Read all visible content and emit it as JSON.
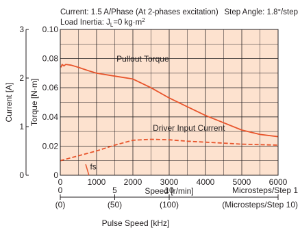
{
  "header": {
    "line1_left": "Current: 1.5 A/Phase (At 2-phases excitation)",
    "line1_right": "Step Angle: 1.8°/step",
    "line2": "Load Inertia: J",
    "line2_sub": "L",
    "line2_tail": "=0 kg·m",
    "line2_sup": "2"
  },
  "colors": {
    "plot_bg": "#fde2cf",
    "curve": "#e8542b",
    "grid": "#231f20"
  },
  "chart_data": {
    "type": "line",
    "xlabel": "Speed [r/min]",
    "ylabel": "Torque [N·m]",
    "y2label": "Current [A]",
    "xlim": [
      0,
      6000
    ],
    "ylim": [
      0,
      0.1
    ],
    "y2lim": [
      0,
      3
    ],
    "x_ticks": [
      "0",
      "1000",
      "2000",
      "3000",
      "4000",
      "5000",
      "6000"
    ],
    "y_ticks": [
      "0",
      "0.02",
      "0.04",
      "0.06",
      "0.08",
      "0.10"
    ],
    "y2_ticks": [
      "0",
      "1",
      "2",
      "3"
    ],
    "grid": true,
    "series": [
      {
        "name": "Pullout Torque",
        "style": "solid",
        "x": [
          20,
          50,
          100,
          150,
          300,
          500,
          800,
          1000,
          1500,
          2000,
          2500,
          3000,
          3500,
          4000,
          4500,
          5000,
          5500,
          6000
        ],
        "y": [
          0.074,
          0.076,
          0.075,
          0.076,
          0.0755,
          0.074,
          0.0715,
          0.07,
          0.068,
          0.066,
          0.06,
          0.053,
          0.047,
          0.041,
          0.036,
          0.031,
          0.028,
          0.0265
        ]
      },
      {
        "name": "Driver Input Current",
        "style": "dashed",
        "axis": "y2",
        "x": [
          0,
          500,
          1000,
          1500,
          2000,
          2500,
          3000,
          3500,
          4000,
          4500,
          5000,
          5500,
          6000
        ],
        "y": [
          0.3,
          0.4,
          0.5,
          0.62,
          0.72,
          0.74,
          0.73,
          0.7,
          0.68,
          0.66,
          0.64,
          0.63,
          0.62
        ]
      }
    ],
    "annotations": [
      {
        "text": "Pullout Torque",
        "x": 1550,
        "y": 0.078
      },
      {
        "text": "Driver Input Current",
        "x": 2550,
        "y": 0.0305
      },
      {
        "text": "fs",
        "x": 820,
        "y": 0.004
      }
    ],
    "secondary_x_axis": {
      "label": "Pulse Speed [kHz]",
      "ticks": [
        {
          "top": "0",
          "bottom": "(0)",
          "speed": 0
        },
        {
          "top": "5",
          "bottom": "(50)",
          "speed": 1500
        },
        {
          "top": "10",
          "bottom": "(100)",
          "speed": 3000
        }
      ],
      "right_top": "Microsteps/Step 1",
      "right_bottom": "(Microsteps/Step 10)"
    }
  }
}
